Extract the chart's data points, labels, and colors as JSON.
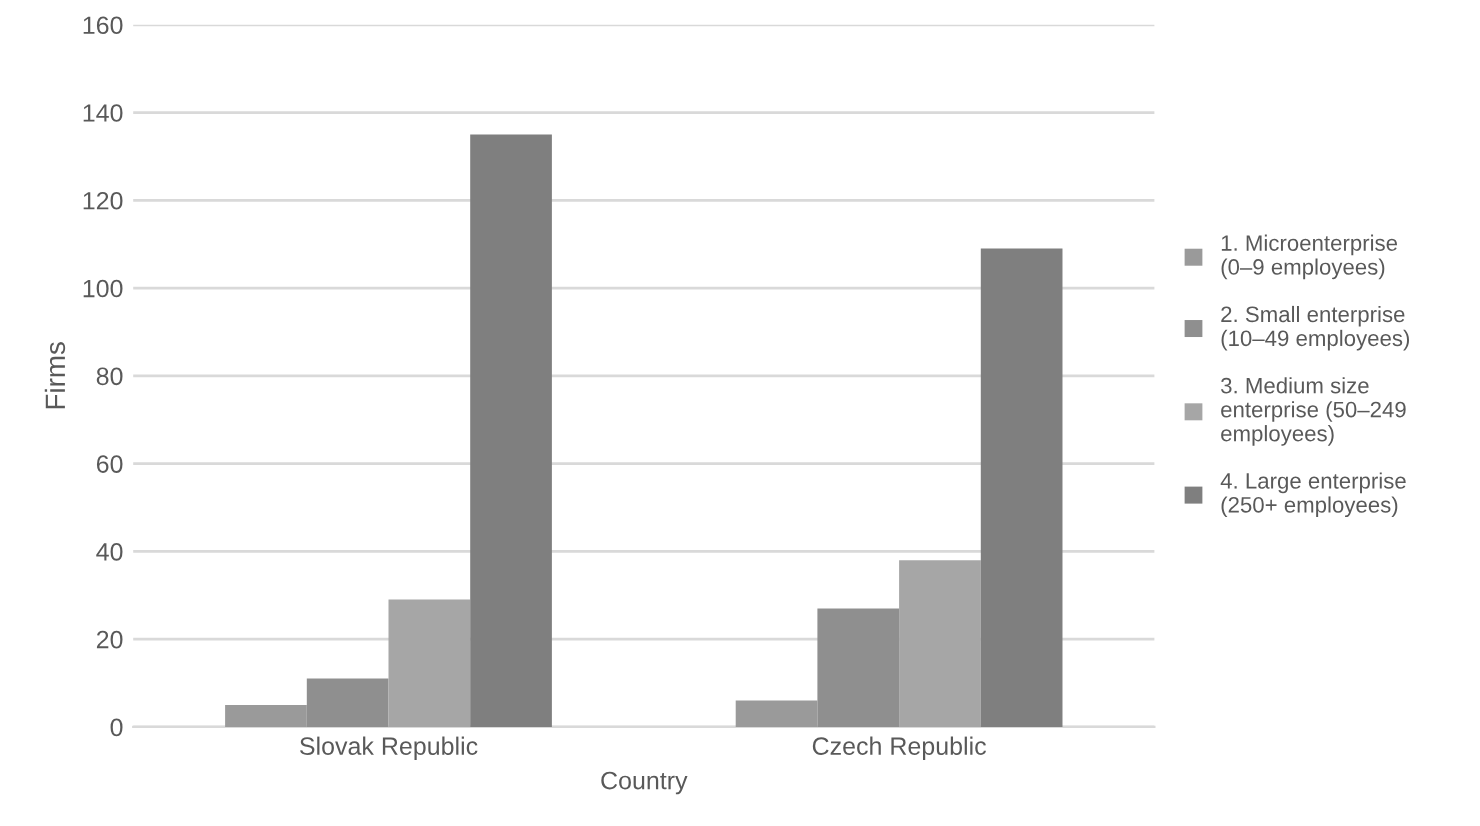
{
  "chart_data": {
    "type": "bar",
    "xlabel": "Country",
    "ylabel": "Firms",
    "categories": [
      "Slovak Republic",
      "Czech Republic"
    ],
    "series": [
      {
        "name": "1. Microenterprise\n(0–9 employees)",
        "color": "#9a9a9a",
        "values": [
          5,
          6
        ]
      },
      {
        "name": "2. Small enterprise\n(10–49 employees)",
        "color": "#8f8f8f",
        "values": [
          11,
          27
        ]
      },
      {
        "name": "3. Medium size\nenterprise (50–249\nemployees)",
        "color": "#a6a6a6",
        "values": [
          29,
          38
        ]
      },
      {
        "name": "4. Large enterprise\n(250+ employees)",
        "color": "#7f7f7f",
        "values": [
          135,
          109
        ]
      }
    ],
    "ylim": [
      0,
      160
    ],
    "yticks": [
      0,
      20,
      40,
      60,
      80,
      100,
      120,
      140,
      160
    ],
    "grid": "y",
    "legend": "right"
  }
}
